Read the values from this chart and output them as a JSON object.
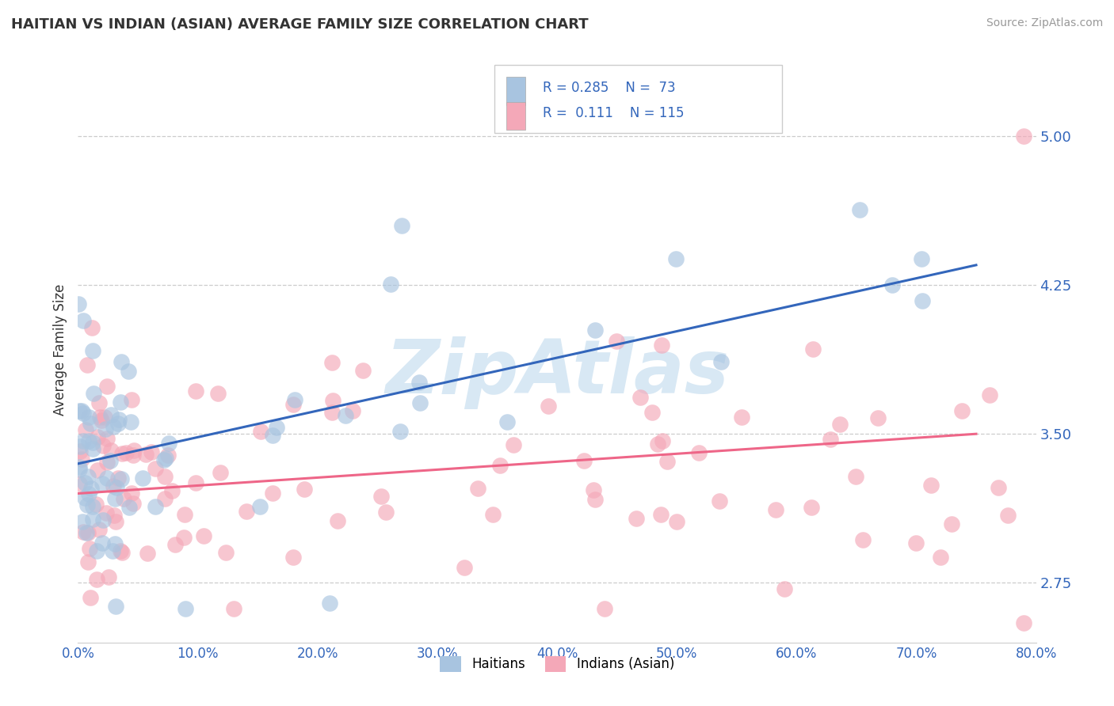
{
  "title": "HAITIAN VS INDIAN (ASIAN) AVERAGE FAMILY SIZE CORRELATION CHART",
  "source": "Source: ZipAtlas.com",
  "ylabel": "Average Family Size",
  "xlim": [
    0.0,
    0.8
  ],
  "ylim": [
    2.45,
    5.4
  ],
  "yticks": [
    2.75,
    3.5,
    4.25,
    5.0
  ],
  "ytick_labels": [
    "2.75",
    "3.50",
    "4.25",
    "5.00"
  ],
  "xticks": [
    0.0,
    0.1,
    0.2,
    0.3,
    0.4,
    0.5,
    0.6,
    0.7,
    0.8
  ],
  "xtick_labels": [
    "0.0%",
    "10.0%",
    "20.0%",
    "30.0%",
    "40.0%",
    "50.0%",
    "60.0%",
    "70.0%",
    "80.0%"
  ],
  "blue_R": 0.285,
  "blue_N": 73,
  "pink_R": 0.111,
  "pink_N": 115,
  "blue_color": "#A8C4E0",
  "pink_color": "#F4A8B8",
  "blue_line_color": "#3366BB",
  "pink_line_color": "#EE6688",
  "background_color": "#FFFFFF",
  "grid_color": "#CCCCCC",
  "tick_color": "#3366BB",
  "ylabel_color": "#333333",
  "title_color": "#333333",
  "source_color": "#999999",
  "legend_text_color": "#3366BB",
  "watermark_color": "#D8E8F4",
  "blue_line_x": [
    0.0,
    0.75
  ],
  "blue_line_y": [
    3.35,
    4.35
  ],
  "pink_line_x": [
    0.0,
    0.75
  ],
  "pink_line_y": [
    3.2,
    3.5
  ]
}
